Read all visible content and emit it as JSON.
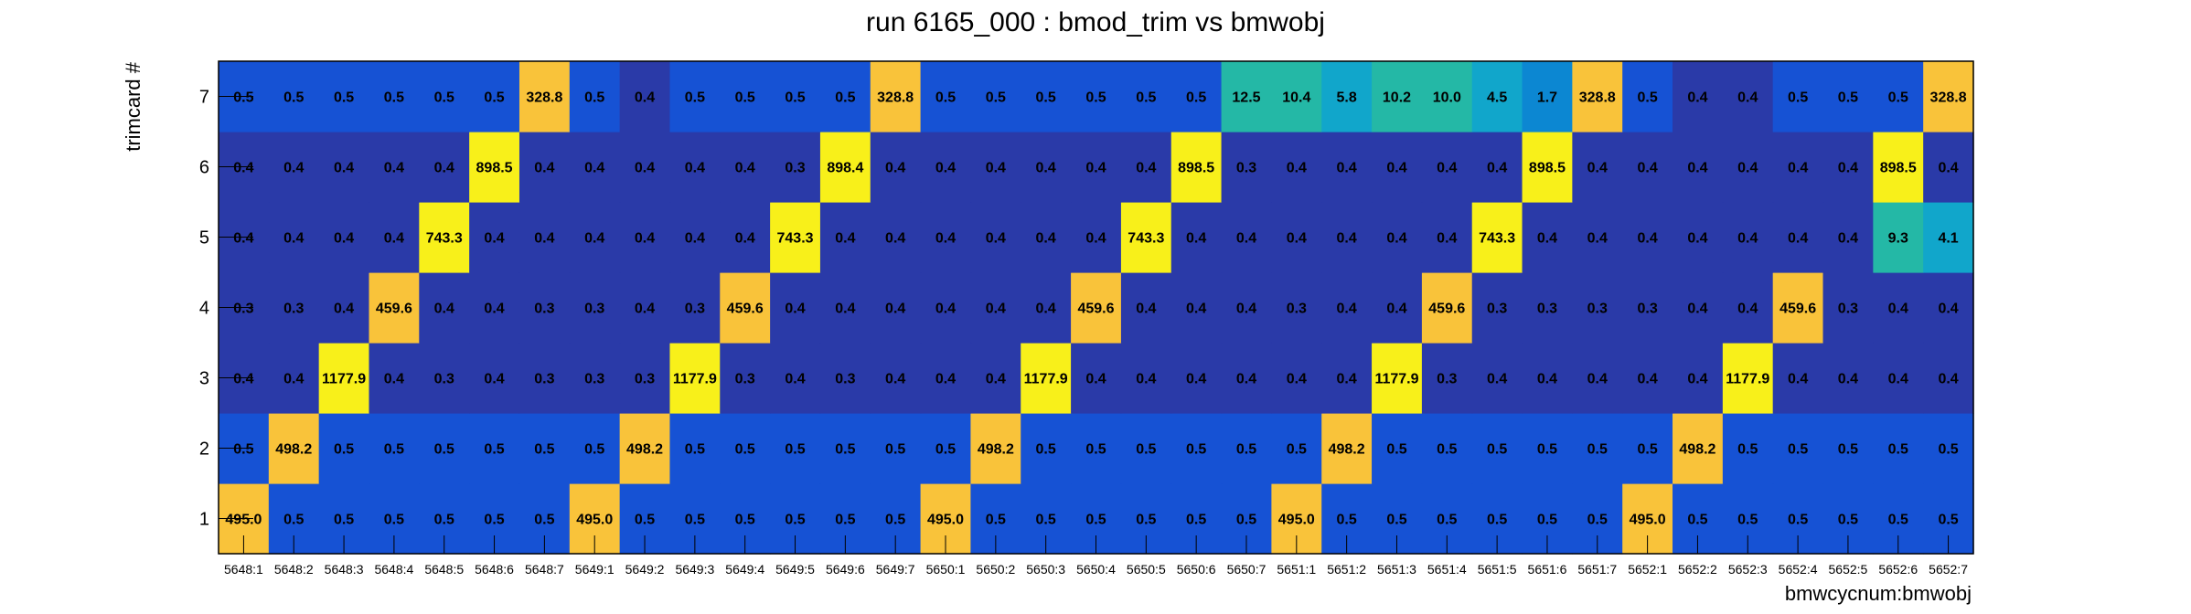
{
  "chart_data": {
    "type": "heatmap",
    "title": "run 6165_000 : bmod_trim vs bmwobj",
    "xlabel": "bmwcycnum:bmwobj",
    "ylabel": "trimcard #",
    "x_categories": [
      "5648:1",
      "5648:2",
      "5648:3",
      "5648:4",
      "5648:5",
      "5648:6",
      "5648:7",
      "5649:1",
      "5649:2",
      "5649:3",
      "5649:4",
      "5649:5",
      "5649:6",
      "5649:7",
      "5650:1",
      "5650:2",
      "5650:3",
      "5650:4",
      "5650:5",
      "5650:6",
      "5650:7",
      "5651:1",
      "5651:2",
      "5651:3",
      "5651:4",
      "5651:5",
      "5651:6",
      "5651:7",
      "5652:1",
      "5652:2",
      "5652:3",
      "5652:4",
      "5652:5",
      "5652:6",
      "5652:7"
    ],
    "y_categories": [
      "1",
      "2",
      "3",
      "4",
      "5",
      "6",
      "7"
    ],
    "values": [
      [
        "495.0",
        "0.5",
        "0.5",
        "0.5",
        "0.5",
        "0.5",
        "0.5",
        "495.0",
        "0.5",
        "0.5",
        "0.5",
        "0.5",
        "0.5",
        "0.5",
        "495.0",
        "0.5",
        "0.5",
        "0.5",
        "0.5",
        "0.5",
        "0.5",
        "495.0",
        "0.5",
        "0.5",
        "0.5",
        "0.5",
        "0.5",
        "0.5",
        "495.0",
        "0.5",
        "0.5",
        "0.5",
        "0.5",
        "0.5",
        "0.5"
      ],
      [
        "0.5",
        "498.2",
        "0.5",
        "0.5",
        "0.5",
        "0.5",
        "0.5",
        "0.5",
        "498.2",
        "0.5",
        "0.5",
        "0.5",
        "0.5",
        "0.5",
        "0.5",
        "498.2",
        "0.5",
        "0.5",
        "0.5",
        "0.5",
        "0.5",
        "0.5",
        "498.2",
        "0.5",
        "0.5",
        "0.5",
        "0.5",
        "0.5",
        "0.5",
        "498.2",
        "0.5",
        "0.5",
        "0.5",
        "0.5",
        "0.5"
      ],
      [
        "0.4",
        "0.4",
        "1177.9",
        "0.4",
        "0.3",
        "0.4",
        "0.3",
        "0.3",
        "0.3",
        "1177.9",
        "0.3",
        "0.4",
        "0.3",
        "0.4",
        "0.4",
        "0.4",
        "1177.9",
        "0.4",
        "0.4",
        "0.4",
        "0.4",
        "0.4",
        "0.4",
        "1177.9",
        "0.3",
        "0.4",
        "0.4",
        "0.4",
        "0.4",
        "0.4",
        "1177.9",
        "0.4",
        "0.4",
        "0.4",
        "0.4"
      ],
      [
        "0.3",
        "0.3",
        "0.4",
        "459.6",
        "0.4",
        "0.4",
        "0.3",
        "0.3",
        "0.4",
        "0.3",
        "459.6",
        "0.4",
        "0.4",
        "0.4",
        "0.4",
        "0.4",
        "0.4",
        "459.6",
        "0.4",
        "0.4",
        "0.4",
        "0.3",
        "0.4",
        "0.4",
        "459.6",
        "0.3",
        "0.3",
        "0.3",
        "0.3",
        "0.4",
        "0.4",
        "459.6",
        "0.3",
        "0.4",
        "0.4"
      ],
      [
        "0.4",
        "0.4",
        "0.4",
        "0.4",
        "743.3",
        "0.4",
        "0.4",
        "0.4",
        "0.4",
        "0.4",
        "0.4",
        "743.3",
        "0.4",
        "0.4",
        "0.4",
        "0.4",
        "0.4",
        "0.4",
        "743.3",
        "0.4",
        "0.4",
        "0.4",
        "0.4",
        "0.4",
        "0.4",
        "743.3",
        "0.4",
        "0.4",
        "0.4",
        "0.4",
        "0.4",
        "0.4",
        "0.4",
        "9.3",
        "4.1"
      ],
      [
        "0.4",
        "0.4",
        "0.4",
        "0.4",
        "0.4",
        "898.5",
        "0.4",
        "0.4",
        "0.4",
        "0.4",
        "0.4",
        "0.3",
        "898.4",
        "0.4",
        "0.4",
        "0.4",
        "0.4",
        "0.4",
        "0.4",
        "898.5",
        "0.3",
        "0.4",
        "0.4",
        "0.4",
        "0.4",
        "0.4",
        "898.5",
        "0.4",
        "0.4",
        "0.4",
        "0.4",
        "0.4",
        "0.4",
        "898.5",
        "0.4"
      ],
      [
        "0.5",
        "0.5",
        "0.5",
        "0.5",
        "0.5",
        "0.5",
        "328.8",
        "0.5",
        "0.4",
        "0.5",
        "0.5",
        "0.5",
        "0.5",
        "328.8",
        "0.5",
        "0.5",
        "0.5",
        "0.5",
        "0.5",
        "0.5",
        "12.5",
        "10.4",
        "5.8",
        "10.2",
        "10.0",
        "4.5",
        "1.7",
        "328.8",
        "0.5",
        "0.4",
        "0.4",
        "0.5",
        "0.5",
        "0.5",
        "328.8"
      ]
    ],
    "colors": {
      "dark_blue": "#2a3aa8",
      "blue": "#1652d4",
      "medium_blue": "#1273de",
      "light_blue": "#0c87d2",
      "cyan": "#11a6cb",
      "teal": "#24b8a6",
      "orange": "#f9c33a",
      "yellow": "#f8f01a"
    }
  }
}
